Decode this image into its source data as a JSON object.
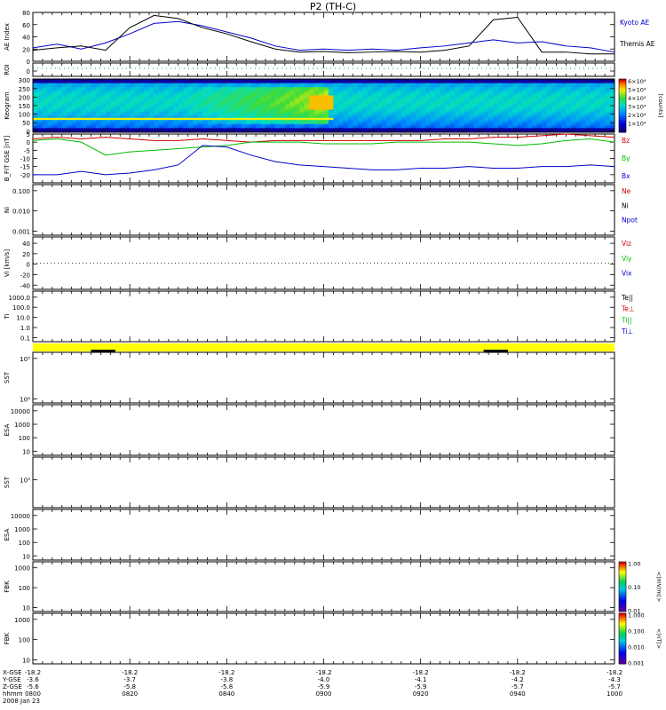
{
  "title": "P2 (TH-C)",
  "footer": {
    "row_labels": [
      "X-GSE",
      "Y-GSE",
      "Z-GSE",
      "hhmm",
      "2008 Jan 23"
    ],
    "columns": [
      {
        "x": "-18.2",
        "y": "-3.6",
        "z": "-5.6",
        "t": "0800"
      },
      {
        "x": "-18.2",
        "y": "-3.7",
        "z": "-5.8",
        "t": "0820"
      },
      {
        "x": "-18.2",
        "y": "-3.8",
        "z": "-5.8",
        "t": "0840"
      },
      {
        "x": "-18.2",
        "y": "-4.0",
        "z": "-5.9",
        "t": "0900"
      },
      {
        "x": "-18.2",
        "y": "-4.1",
        "z": "-5.9",
        "t": "0920"
      },
      {
        "x": "-18.2",
        "y": "-4.2",
        "z": "-5.7",
        "t": "0940"
      },
      {
        "x": "-18.2",
        "y": "-4.3",
        "z": "-5.7",
        "t": "1000"
      }
    ]
  },
  "colorbars": {
    "keogram": {
      "labels": [
        "6×10⁴",
        "5×10⁴",
        "4×10⁴",
        "3×10⁴",
        "2×10⁴",
        "1×10⁴"
      ],
      "unit": "[counts]"
    },
    "fbk1": {
      "labels": [
        "1.00",
        "0.10",
        "0.01"
      ],
      "unit": "<|mV/m|>"
    },
    "fbk2": {
      "labels": [
        "1.000",
        "0.100",
        "0.010",
        "0.001"
      ],
      "unit": "<|nT|>"
    }
  },
  "chart_data": [
    {
      "type": "line",
      "panel": "ae",
      "ylabel": "AE Index",
      "ylim": [
        0,
        80
      ],
      "yticks": [
        "80",
        "60",
        "40",
        "20",
        "0"
      ],
      "x_minutes": [
        0,
        5,
        10,
        15,
        20,
        25,
        30,
        35,
        40,
        45,
        50,
        55,
        60,
        65,
        70,
        75,
        80,
        85,
        90,
        95,
        100,
        105,
        110,
        115,
        120
      ],
      "series": [
        {
          "name": "Kyoto AE",
          "color": "#0000cc",
          "values": [
            22,
            28,
            20,
            30,
            45,
            62,
            65,
            58,
            48,
            38,
            25,
            18,
            20,
            18,
            20,
            18,
            22,
            25,
            30,
            35,
            30,
            32,
            25,
            22,
            15
          ]
        },
        {
          "name": "Themis AE",
          "color": "#000000",
          "values": [
            18,
            22,
            25,
            18,
            55,
            75,
            70,
            55,
            45,
            32,
            20,
            15,
            16,
            14,
            15,
            16,
            15,
            18,
            25,
            68,
            72,
            15,
            15,
            12,
            12
          ]
        }
      ]
    },
    {
      "type": "line",
      "panel": "roi",
      "ylabel": "ROI",
      "yticks": [
        "0"
      ]
    },
    {
      "type": "heatmap",
      "panel": "keogram",
      "ylabel": "Keogram",
      "ylim": [
        0,
        300
      ],
      "yticks": [
        "300",
        "250",
        "200",
        "150",
        "100",
        "50",
        "0"
      ],
      "bright_start_min": 30,
      "bright_end_min": 60,
      "peak_min": 59
    },
    {
      "type": "line",
      "panel": "bfit",
      "ylabel": "B_FIT GSE [nT]",
      "ylim": [
        -25,
        5
      ],
      "yticks": [
        "5",
        "0",
        "-5",
        "-10",
        "-15",
        "-20"
      ],
      "x_minutes": [
        0,
        5,
        10,
        15,
        20,
        25,
        30,
        35,
        40,
        45,
        50,
        55,
        60,
        65,
        70,
        75,
        80,
        85,
        90,
        95,
        100,
        105,
        110,
        115,
        120
      ],
      "series": [
        {
          "name": "Bz",
          "color": "#cc0000",
          "values": [
            2,
            3,
            2,
            3,
            2,
            1,
            1,
            2,
            1,
            0,
            1,
            1,
            1,
            1,
            1,
            1,
            1,
            2,
            2,
            3,
            3,
            4,
            5,
            4,
            3
          ]
        },
        {
          "name": "By",
          "color": "#00bb00",
          "values": [
            1,
            2,
            0,
            -8,
            -6,
            -5,
            -4,
            -3,
            -2,
            0,
            0,
            0,
            -1,
            -1,
            -1,
            0,
            0,
            0,
            0,
            -1,
            -2,
            -1,
            1,
            2,
            0
          ]
        },
        {
          "name": "Bx",
          "color": "#0000cc",
          "values": [
            -20,
            -20,
            -18,
            -20,
            -19,
            -17,
            -14,
            -2,
            -3,
            -8,
            -12,
            -14,
            -15,
            -16,
            -17,
            -17,
            -16,
            -16,
            -15,
            -16,
            -16,
            -15,
            -15,
            -14,
            -15
          ]
        }
      ]
    },
    {
      "type": "line",
      "panel": "ni",
      "ylabel": "Ni",
      "yticks": [
        "0.100",
        "0.010",
        "0.001"
      ],
      "series": [
        {
          "name": "Ne",
          "color": "#cc0000"
        },
        {
          "name": "Ni",
          "color": "#000000"
        },
        {
          "name": "Npot",
          "color": "#0000cc"
        }
      ]
    },
    {
      "type": "line",
      "panel": "vi",
      "ylabel": "Vi [km/s]",
      "ylim": [
        -50,
        50
      ],
      "yticks": [
        "40",
        "20",
        "0",
        "-20",
        "-40"
      ],
      "series": [
        {
          "name": "Viz",
          "color": "#cc0000"
        },
        {
          "name": "Viy",
          "color": "#00bb00"
        },
        {
          "name": "Vix",
          "color": "#0000cc"
        }
      ]
    },
    {
      "type": "line",
      "panel": "ti",
      "ylabel": "Ti",
      "yticks": [
        "1000.0",
        "100.0",
        "10.0",
        "1.0",
        "0.1"
      ],
      "series": [
        {
          "name": "Te||",
          "color": "#000000"
        },
        {
          "name": "Te⊥",
          "color": "#cc0000"
        },
        {
          "name": "Ti||",
          "color": "#00bb00"
        },
        {
          "name": "Ti⊥",
          "color": "#0000cc"
        }
      ]
    },
    {
      "type": "bar",
      "panel": "mode",
      "segments_min": [
        [
          12,
          17
        ],
        [
          93,
          98
        ]
      ]
    },
    {
      "type": "heatmap",
      "panel": "sst1",
      "ylabel": "SST",
      "yticks": [
        "10⁵",
        "10⁴"
      ]
    },
    {
      "type": "heatmap",
      "panel": "esa1",
      "ylabel": "ESA",
      "yticks": [
        "10000",
        "1000",
        "100",
        "10"
      ]
    },
    {
      "type": "heatmap",
      "panel": "sst2",
      "ylabel": "SST",
      "yticks": [
        "10⁵"
      ]
    },
    {
      "type": "heatmap",
      "panel": "esa2",
      "ylabel": "ESA",
      "yticks": [
        "10000",
        "1000",
        "100",
        "10"
      ]
    },
    {
      "type": "heatmap",
      "panel": "fbk1",
      "ylabel": "FBK",
      "yticks": [
        "1000",
        "100",
        "10"
      ]
    },
    {
      "type": "heatmap",
      "panel": "fbk2",
      "ylabel": "FBK",
      "yticks": [
        "1000",
        "100",
        "10"
      ]
    }
  ]
}
